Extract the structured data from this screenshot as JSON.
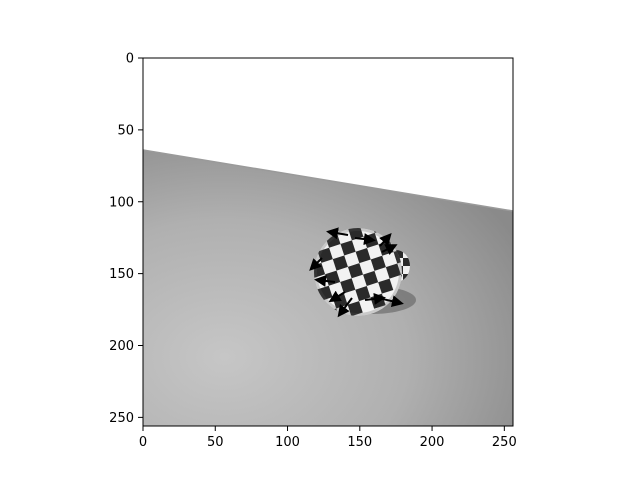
{
  "image": {
    "description_icon": "image-axes",
    "x_ticks": [
      {
        "value": 0,
        "label": "0"
      },
      {
        "value": 50,
        "label": "50"
      },
      {
        "value": 100,
        "label": "100"
      },
      {
        "value": 150,
        "label": "150"
      },
      {
        "value": 200,
        "label": "200"
      },
      {
        "value": 250,
        "label": "250"
      }
    ],
    "y_ticks": [
      {
        "value": 0,
        "label": "0"
      },
      {
        "value": 50,
        "label": "50"
      },
      {
        "value": 100,
        "label": "100"
      },
      {
        "value": 150,
        "label": "150"
      },
      {
        "value": 200,
        "label": "200"
      },
      {
        "value": 250,
        "label": "250"
      }
    ],
    "x_range": [
      0,
      256
    ],
    "y_range": [
      0,
      256
    ],
    "colors": {
      "sky": "#ffffff",
      "floor_light": "#c4c4c4",
      "floor_dark": "#8c8c8c",
      "checker_dark": "#2a2a2a",
      "checker_light": "#f2f2f2",
      "arrow": "#000000"
    }
  }
}
